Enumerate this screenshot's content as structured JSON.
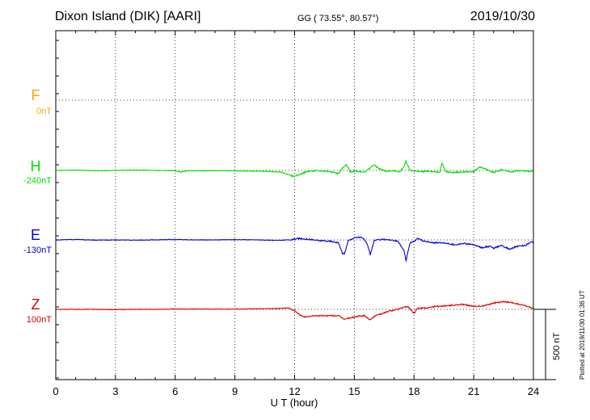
{
  "header": {
    "title": "Dixon Island (DIK)  [AARI]",
    "coords": "GG ( 73.55°,  80.57°)",
    "date": "2019/10/30"
  },
  "footer": {
    "plotted": "Plotted at 2019/11/30 01:36 UT"
  },
  "components": [
    {
      "name": "F",
      "baseline": "0nT",
      "color": "#ffa500"
    },
    {
      "name": "H",
      "baseline": "-240nT",
      "color": "#00e000"
    },
    {
      "name": "E",
      "baseline": "-130nT",
      "color": "#0000e0"
    },
    {
      "name": "Z",
      "baseline": "100nT",
      "color": "#e00000"
    }
  ],
  "chart_data": {
    "type": "line",
    "xlabel": "U T (hour)",
    "xlim": [
      0,
      24
    ],
    "xticks": [
      "0",
      "3",
      "6",
      "9",
      "12",
      "15",
      "18",
      "21",
      "24"
    ],
    "scale_bar": "500 nT",
    "grid": true,
    "series": [
      {
        "name": "H",
        "baseline_nT": -240,
        "color": "#00e000",
        "points": [
          [
            0,
            0
          ],
          [
            1,
            2
          ],
          [
            2,
            -3
          ],
          [
            3,
            0
          ],
          [
            4,
            3
          ],
          [
            5,
            0
          ],
          [
            6,
            -2
          ],
          [
            6.3,
            -12
          ],
          [
            6.6,
            -2
          ],
          [
            7.5,
            -3
          ],
          [
            8.5,
            -2
          ],
          [
            9.5,
            -4
          ],
          [
            10.5,
            -6
          ],
          [
            11.3,
            -12
          ],
          [
            11.7,
            -30
          ],
          [
            12.0,
            -45
          ],
          [
            12.3,
            -25
          ],
          [
            12.7,
            -5
          ],
          [
            13.2,
            -2
          ],
          [
            13.8,
            -8
          ],
          [
            14.2,
            -22
          ],
          [
            14.4,
            15
          ],
          [
            14.6,
            40
          ],
          [
            14.8,
            -10
          ],
          [
            15.1,
            -5
          ],
          [
            15.4,
            -10
          ],
          [
            15.6,
            -5
          ],
          [
            15.8,
            18
          ],
          [
            16.0,
            40
          ],
          [
            16.2,
            15
          ],
          [
            16.6,
            -5
          ],
          [
            17.0,
            -2
          ],
          [
            17.3,
            -10
          ],
          [
            17.5,
            30
          ],
          [
            17.6,
            65
          ],
          [
            17.8,
            0
          ],
          [
            18.0,
            -5
          ],
          [
            18.4,
            -8
          ],
          [
            18.8,
            -5
          ],
          [
            19.1,
            -12
          ],
          [
            19.3,
            -10
          ],
          [
            19.4,
            50
          ],
          [
            19.6,
            -10
          ],
          [
            20.0,
            -15
          ],
          [
            20.5,
            -10
          ],
          [
            21.0,
            -10
          ],
          [
            21.3,
            25
          ],
          [
            21.6,
            10
          ],
          [
            22.0,
            -15
          ],
          [
            22.4,
            5
          ],
          [
            22.9,
            -10
          ],
          [
            23.3,
            0
          ],
          [
            23.6,
            -5
          ],
          [
            24,
            -5
          ]
        ]
      },
      {
        "name": "E",
        "baseline_nT": -130,
        "color": "#0000e0",
        "points": [
          [
            0,
            0
          ],
          [
            1,
            3
          ],
          [
            2,
            -2
          ],
          [
            3,
            0
          ],
          [
            4,
            -2
          ],
          [
            5,
            0
          ],
          [
            6,
            3
          ],
          [
            7,
            0
          ],
          [
            8,
            0
          ],
          [
            9,
            2
          ],
          [
            10,
            0
          ],
          [
            11,
            -3
          ],
          [
            11.8,
            0
          ],
          [
            12.2,
            10
          ],
          [
            12.7,
            5
          ],
          [
            13.2,
            -5
          ],
          [
            13.8,
            -10
          ],
          [
            14.2,
            -20
          ],
          [
            14.4,
            -95
          ],
          [
            14.5,
            -100
          ],
          [
            14.7,
            -5
          ],
          [
            15.0,
            15
          ],
          [
            15.3,
            20
          ],
          [
            15.5,
            5
          ],
          [
            15.7,
            -50
          ],
          [
            15.8,
            -105
          ],
          [
            16.0,
            -5
          ],
          [
            16.4,
            5
          ],
          [
            16.8,
            0
          ],
          [
            17.2,
            -10
          ],
          [
            17.5,
            -80
          ],
          [
            17.6,
            -150
          ],
          [
            17.8,
            -20
          ],
          [
            18.0,
            -10
          ],
          [
            18.2,
            10
          ],
          [
            18.5,
            -10
          ],
          [
            19.0,
            -20
          ],
          [
            19.5,
            -20
          ],
          [
            20.0,
            -35
          ],
          [
            20.5,
            -25
          ],
          [
            21.0,
            -35
          ],
          [
            21.4,
            -55
          ],
          [
            21.8,
            -45
          ],
          [
            22.0,
            -60
          ],
          [
            22.4,
            -40
          ],
          [
            22.8,
            -65
          ],
          [
            23.2,
            -45
          ],
          [
            23.6,
            -40
          ],
          [
            23.8,
            -20
          ],
          [
            24,
            -15
          ]
        ]
      },
      {
        "name": "Z",
        "baseline_nT": 100,
        "color": "#e00000",
        "points": [
          [
            0,
            0
          ],
          [
            1,
            0
          ],
          [
            2,
            0
          ],
          [
            3,
            -2
          ],
          [
            4,
            0
          ],
          [
            5,
            0
          ],
          [
            6,
            2
          ],
          [
            7,
            2
          ],
          [
            8,
            2
          ],
          [
            9,
            2
          ],
          [
            10,
            3
          ],
          [
            11,
            5
          ],
          [
            11.7,
            10
          ],
          [
            12.0,
            -10
          ],
          [
            12.3,
            -45
          ],
          [
            12.6,
            -55
          ],
          [
            13.0,
            -45
          ],
          [
            13.4,
            -45
          ],
          [
            13.8,
            -45
          ],
          [
            14.2,
            -45
          ],
          [
            14.5,
            -70
          ],
          [
            14.8,
            -60
          ],
          [
            15.2,
            -50
          ],
          [
            15.5,
            -45
          ],
          [
            15.8,
            -75
          ],
          [
            16.1,
            -40
          ],
          [
            16.4,
            -30
          ],
          [
            16.8,
            -10
          ],
          [
            17.2,
            0
          ],
          [
            17.5,
            15
          ],
          [
            17.7,
            20
          ],
          [
            18.0,
            -30
          ],
          [
            18.2,
            10
          ],
          [
            18.6,
            10
          ],
          [
            19.0,
            20
          ],
          [
            19.5,
            25
          ],
          [
            20.0,
            30
          ],
          [
            20.5,
            35
          ],
          [
            21.0,
            20
          ],
          [
            21.5,
            25
          ],
          [
            22.0,
            45
          ],
          [
            22.5,
            55
          ],
          [
            23.0,
            45
          ],
          [
            23.6,
            25
          ],
          [
            24,
            5
          ]
        ]
      }
    ]
  }
}
